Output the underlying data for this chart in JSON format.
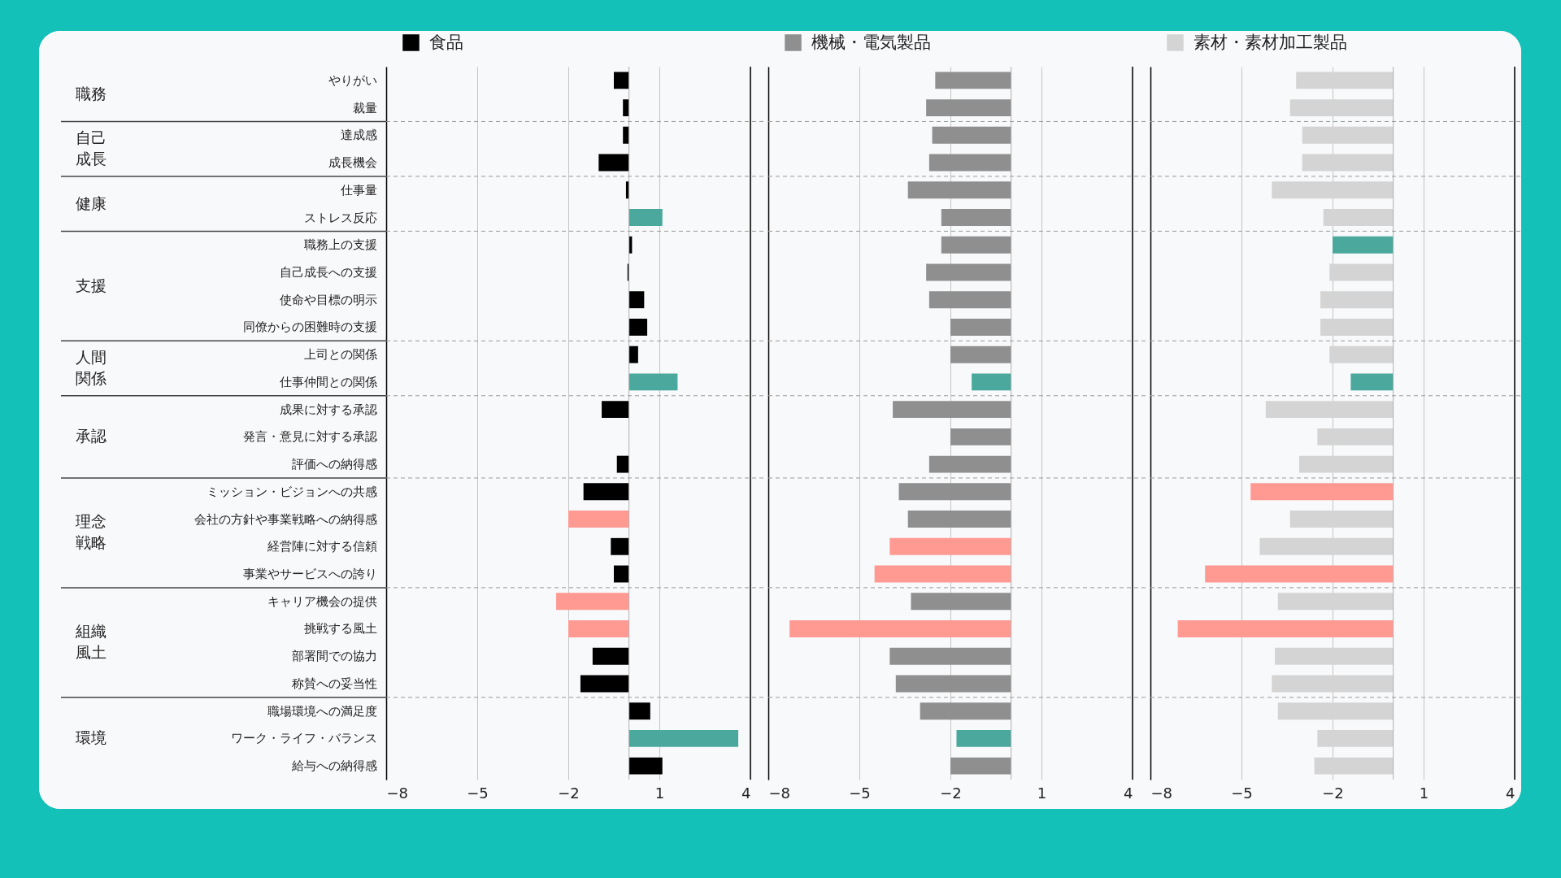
{
  "chart_data": [
    {
      "type": "bar",
      "orientation": "horizontal",
      "legend": "top left",
      "grid": "x",
      "categories": [
        "やりがい",
        "裁量",
        "達成感",
        "成長機会",
        "仕事量",
        "ストレス反応",
        "職務上の支援",
        "自己成長への支援",
        "使命や目標の明示",
        "同僚からの困難時の支援",
        "上司との関係",
        "仕事仲間との関係",
        "成果に対する承認",
        "発言・意見に対する承認",
        "評価への納得感",
        "ミッション・ビジョンへの共感",
        "会社の方針や事業戦略への納得感",
        "経営陣に対する信頼",
        "事業やサービスへの誇り",
        "キャリア機会の提供",
        "挑戦する風土",
        "部署間での協力",
        "称賛への妥当性",
        "職場環境への満足度",
        "ワーク・ライフ・バランス",
        "給与への納得感"
      ],
      "series": [
        {
          "name": "食品",
          "color": "#000000",
          "values": [
            -0.5,
            -0.2,
            -0.2,
            -1.0,
            -0.1,
            1.1,
            0.1,
            -0.05,
            0.5,
            0.6,
            0.3,
            1.6,
            -0.9,
            0,
            -0.4,
            -1.5,
            -2.0,
            -0.6,
            -0.5,
            -2.4,
            -2.0,
            -1.2,
            -1.6,
            0.7,
            3.6,
            1.1
          ],
          "colors": [
            "#000000",
            "#000000",
            "#000000",
            "#000000",
            "#000000",
            "#4aa89c",
            "#000000",
            "#000000",
            "#000000",
            "#000000",
            "#000000",
            "#4aa89c",
            "#000000",
            "#000000",
            "#000000",
            "#000000",
            "#ff9a93",
            "#000000",
            "#000000",
            "#ff9a93",
            "#ff9a93",
            "#000000",
            "#000000",
            "#000000",
            "#4aa89c",
            "#000000"
          ]
        }
      ],
      "xlim": [
        -8,
        4
      ],
      "xticks": [
        -8,
        -5,
        -2,
        1,
        4
      ],
      "ref_lines": [
        {
          "axis": "x",
          "value": 0,
          "color": "#b0b0b0"
        }
      ],
      "annotations": [
        "職務",
        "自己成長",
        "健康",
        "支援",
        "人間関係",
        "承認",
        "理念戦略",
        "組織風土",
        "環境"
      ]
    },
    {
      "type": "bar",
      "orientation": "horizontal",
      "legend": "top left",
      "grid": "x",
      "categories": [
        null,
        null,
        null,
        null,
        null,
        null,
        null,
        null,
        null,
        null,
        null,
        null,
        null,
        null,
        null,
        null,
        null,
        null,
        null,
        null,
        null,
        null,
        null,
        null,
        null,
        null
      ],
      "series": [
        {
          "name": "機械・電気製品",
          "color": "#8f8f8f",
          "values": [
            -2.5,
            -2.8,
            -2.6,
            -2.7,
            -3.4,
            -2.3,
            -2.3,
            -2.8,
            -2.7,
            -2.0,
            -2.0,
            -1.3,
            -3.9,
            -2.0,
            -2.7,
            -3.7,
            -3.4,
            -4.0,
            -4.5,
            -3.3,
            -7.3,
            -4.0,
            -3.8,
            -3.0,
            -1.8,
            -2.0
          ],
          "colors": [
            "#8f8f8f",
            "#8f8f8f",
            "#8f8f8f",
            "#8f8f8f",
            "#8f8f8f",
            "#8f8f8f",
            "#8f8f8f",
            "#8f8f8f",
            "#8f8f8f",
            "#8f8f8f",
            "#8f8f8f",
            "#4aa89c",
            "#8f8f8f",
            "#8f8f8f",
            "#8f8f8f",
            "#8f8f8f",
            "#8f8f8f",
            "#ff9a93",
            "#ff9a93",
            "#8f8f8f",
            "#ff9a93",
            "#8f8f8f",
            "#8f8f8f",
            "#8f8f8f",
            "#4aa89c",
            "#8f8f8f"
          ]
        }
      ],
      "xlim": [
        -8,
        4
      ],
      "xticks": [
        -8,
        -5,
        -2,
        1,
        4
      ],
      "ref_lines": [
        {
          "axis": "x",
          "value": 0,
          "color": "#b0b0b0"
        }
      ]
    },
    {
      "type": "bar",
      "orientation": "horizontal",
      "legend": "top left",
      "grid": "x",
      "categories": [
        null,
        null,
        null,
        null,
        null,
        null,
        null,
        null,
        null,
        null,
        null,
        null,
        null,
        null,
        null,
        null,
        null,
        null,
        null,
        null,
        null,
        null,
        null,
        null,
        null,
        null
      ],
      "series": [
        {
          "name": "素材・素材加工製品",
          "color": "#d4d4d4",
          "values": [
            -3.2,
            -3.4,
            -3.0,
            -3.0,
            -4.0,
            -2.3,
            -2.0,
            -2.1,
            -2.4,
            -2.4,
            -2.1,
            -1.4,
            -4.2,
            -2.5,
            -3.1,
            -4.7,
            -3.4,
            -4.4,
            -6.2,
            -3.8,
            -7.1,
            -3.9,
            -4.0,
            -3.8,
            -2.5,
            -2.6
          ],
          "colors": [
            "#d4d4d4",
            "#d4d4d4",
            "#d4d4d4",
            "#d4d4d4",
            "#d4d4d4",
            "#d4d4d4",
            "#4aa89c",
            "#d4d4d4",
            "#d4d4d4",
            "#d4d4d4",
            "#d4d4d4",
            "#4aa89c",
            "#d4d4d4",
            "#d4d4d4",
            "#d4d4d4",
            "#ff9a93",
            "#d4d4d4",
            "#d4d4d4",
            "#ff9a93",
            "#d4d4d4",
            "#ff9a93",
            "#d4d4d4",
            "#d4d4d4",
            "#d4d4d4",
            "#d4d4d4",
            "#d4d4d4"
          ]
        }
      ],
      "xlim": [
        -8,
        4
      ],
      "xticks": [
        -8,
        -5,
        -2,
        1,
        4
      ],
      "ref_lines": [
        {
          "axis": "x",
          "value": 0,
          "color": "#b0b0b0"
        }
      ]
    }
  ]
}
